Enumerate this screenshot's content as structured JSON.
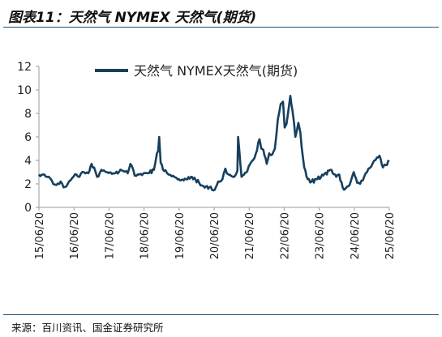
{
  "figure": {
    "title": "图表11：天然气 NYMEX 天然气(期货)",
    "source": "来源：百川资讯、国金证券研究所"
  },
  "colors": {
    "line": "#163f5e",
    "rule": "#1f4e79",
    "axis": "#999999"
  },
  "chart_data": {
    "type": "line",
    "title": "",
    "xlabel": "",
    "ylabel": "",
    "ylim": [
      0,
      12
    ],
    "yticks": [
      0,
      2,
      4,
      6,
      8,
      10,
      12
    ],
    "xlim": [
      "2015-06-20",
      "2025-06-20"
    ],
    "xticks": [
      "15/06/20",
      "16/06/20",
      "17/06/20",
      "18/06/20",
      "19/06/20",
      "20/06/20",
      "21/06/20",
      "22/06/20",
      "23/06/20",
      "24/06/20",
      "25/06/20"
    ],
    "grid": false,
    "legend": "top",
    "series": [
      {
        "name": "天然气 NYMEX天然气(期货)",
        "x": [
          "2015-06-20",
          "2015-08-01",
          "2015-09-15",
          "2015-11-01",
          "2015-12-18",
          "2016-02-01",
          "2016-03-03",
          "2016-04-15",
          "2016-06-01",
          "2016-07-15",
          "2016-08-15",
          "2016-10-01",
          "2016-11-15",
          "2016-12-20",
          "2017-01-15",
          "2017-02-15",
          "2017-04-01",
          "2017-06-01",
          "2017-08-01",
          "2017-10-01",
          "2017-11-15",
          "2018-01-01",
          "2018-01-29",
          "2018-03-15",
          "2018-05-01",
          "2018-06-15",
          "2018-08-01",
          "2018-10-01",
          "2018-11-01",
          "2018-11-14",
          "2018-11-25",
          "2018-12-10",
          "2019-01-15",
          "2019-03-01",
          "2019-05-01",
          "2019-07-01",
          "2019-09-01",
          "2019-11-01",
          "2020-01-15",
          "2020-03-01",
          "2020-05-01",
          "2020-06-26",
          "2020-08-01",
          "2020-09-15",
          "2020-10-15",
          "2020-11-15",
          "2021-01-01",
          "2021-02-01",
          "2021-02-17",
          "2021-02-25",
          "2021-04-01",
          "2021-06-01",
          "2021-07-15",
          "2021-08-15",
          "2021-10-06",
          "2021-10-25",
          "2021-11-15",
          "2021-12-20",
          "2022-01-15",
          "2022-02-15",
          "2022-03-15",
          "2022-04-15",
          "2022-05-15",
          "2022-06-08",
          "2022-06-25",
          "2022-07-15",
          "2022-08-23",
          "2022-09-15",
          "2022-10-15",
          "2022-11-15",
          "2022-12-05",
          "2022-12-20",
          "2023-01-15",
          "2023-02-20",
          "2023-04-01",
          "2023-06-01",
          "2023-08-01",
          "2023-10-15",
          "2023-12-15",
          "2024-01-15",
          "2024-02-20",
          "2024-03-20",
          "2024-04-20",
          "2024-06-01",
          "2024-06-15",
          "2024-07-20",
          "2024-08-20",
          "2024-10-01",
          "2024-11-15",
          "2024-12-15",
          "2025-01-15",
          "2025-03-10",
          "2025-04-15",
          "2025-05-15",
          "2025-06-20"
        ],
        "y": [
          2.8,
          2.8,
          2.6,
          2.3,
          1.9,
          2.2,
          1.7,
          2.0,
          2.5,
          2.8,
          2.6,
          3.0,
          2.9,
          3.7,
          3.4,
          2.6,
          3.2,
          3.0,
          2.9,
          3.0,
          3.1,
          2.9,
          3.7,
          2.7,
          2.8,
          2.9,
          2.9,
          3.2,
          4.6,
          4.8,
          6.0,
          3.8,
          3.1,
          2.8,
          2.6,
          2.3,
          2.4,
          2.6,
          2.1,
          1.8,
          1.7,
          1.5,
          2.2,
          2.4,
          3.3,
          2.8,
          2.6,
          2.8,
          3.1,
          6.0,
          2.6,
          3.1,
          3.9,
          4.2,
          5.8,
          5.0,
          4.9,
          3.7,
          4.6,
          4.5,
          5.0,
          7.5,
          8.8,
          9.0,
          6.8,
          7.1,
          9.5,
          8.2,
          6.0,
          7.2,
          6.4,
          5.1,
          3.4,
          2.4,
          2.2,
          2.4,
          2.7,
          3.2,
          2.6,
          2.8,
          1.7,
          1.6,
          1.8,
          2.7,
          3.0,
          2.1,
          2.0,
          2.6,
          3.3,
          3.5,
          4.0,
          4.4,
          3.4,
          3.6,
          3.9
        ]
      }
    ]
  }
}
